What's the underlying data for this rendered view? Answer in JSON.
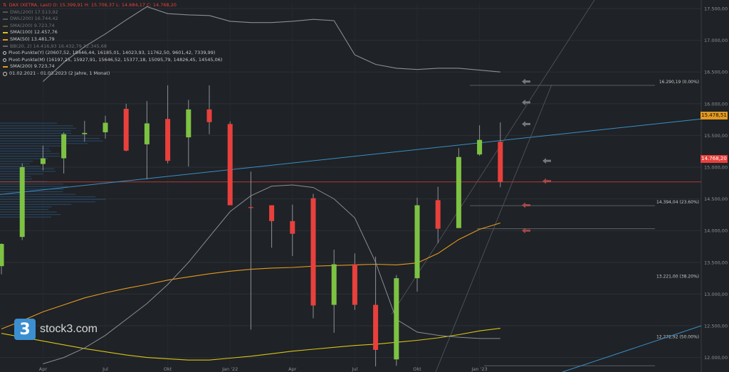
{
  "legend": {
    "symbol_line": "DAX (XETRA, Last)   O: 15.399,91   H: 15.706,37   L: 14.684,17   C: 14.768,20",
    "row2": "DWL(200) 17.513,92",
    "row3": "DWL(200) 16.744,42",
    "row4": "SMA(200) 9.723,74",
    "row5": "SMA(100) 12.457,76",
    "row6": "SMA(50) 13.481,79",
    "row7": "BB(20, 2) 14.416,93  16.432,79  12.345,68",
    "row8": "Pivot-Punkte(Y)  (20607,52,  18446,44,  16185,01,  14023,93,  11762,50,  9601,42,  7339,99)",
    "row9": "Pivot-Punkte(M)  (16197,25,  15927,91,  15646,52,  15377,18,  15095,79,  14826,45,  14545,06)",
    "row10": "SMA(200) 9.723,74",
    "row11": "01.02.2021 - 01.03.2023   (2 Jahre, 1 Monat)"
  },
  "logo": {
    "mark": "3",
    "name": "stock3.com"
  },
  "price_tags": {
    "current": "15.478,51",
    "close": "14.768,20"
  },
  "fib_labels": [
    "16.290,19 (0.00%)",
    "14.394,04 (23.60%)",
    "13.221,00 (38.20%)",
    "12.272,92 (50.00%)"
  ],
  "colors": {
    "background": "#1f2226",
    "up": "#7dc243",
    "down": "#e8403c",
    "sma_orange": "#e39a21",
    "sma_yellow": "#d8c418",
    "bb_grey": "#8a8d91",
    "trend_blue": "#3a8fc7"
  },
  "chart_data": {
    "type": "candlestick",
    "title": "DAX (XETRA, Last)",
    "interval": "monthly",
    "range": "01.02.2021 - 01.03.2023",
    "y_ticks": [
      12000,
      12500,
      13000,
      13500,
      14000,
      14500,
      15000,
      15500,
      16000,
      16500,
      17000,
      17500
    ],
    "y_tick_labels": [
      "12.000,00",
      "12.500,00",
      "13.000,00",
      "13.500,00",
      "14.000,00",
      "14.500,00",
      "15.000,00",
      "15.500,00",
      "16.000,00",
      "16.500,00",
      "17.000,00",
      "17.500,00"
    ],
    "ylim": [
      11850,
      17590
    ],
    "x_tick_labels": [
      {
        "index": 2,
        "label": "Apr"
      },
      {
        "index": 5,
        "label": "Jul"
      },
      {
        "index": 8,
        "label": "Okt"
      },
      {
        "index": 11,
        "label": "Jan '22"
      },
      {
        "index": 14,
        "label": "Apr"
      },
      {
        "index": 17,
        "label": "Jul"
      },
      {
        "index": 20,
        "label": "Okt"
      },
      {
        "index": 23,
        "label": "Jan '23"
      }
    ],
    "candles": [
      {
        "o": 13440,
        "h": 13800,
        "l": 13310,
        "c": 13790
      },
      {
        "o": 13900,
        "h": 15060,
        "l": 13850,
        "c": 15000
      },
      {
        "o": 15050,
        "h": 15340,
        "l": 14950,
        "c": 15140
      },
      {
        "o": 15140,
        "h": 15550,
        "l": 14900,
        "c": 15520
      },
      {
        "o": 15520,
        "h": 15730,
        "l": 15400,
        "c": 15540
      },
      {
        "o": 15550,
        "h": 15810,
        "l": 15450,
        "c": 15700
      },
      {
        "o": 15920,
        "h": 16000,
        "l": 15250,
        "c": 15260
      },
      {
        "o": 15360,
        "h": 16040,
        "l": 14810,
        "c": 15690
      },
      {
        "o": 15760,
        "h": 16290,
        "l": 15060,
        "c": 15100
      },
      {
        "o": 15470,
        "h": 16060,
        "l": 15010,
        "c": 15910
      },
      {
        "o": 15910,
        "h": 16290,
        "l": 15520,
        "c": 15710
      },
      {
        "o": 15680,
        "h": 15720,
        "l": 14430,
        "c": 14400
      },
      {
        "o": 14370,
        "h": 14930,
        "l": 12440,
        "c": 14360
      },
      {
        "o": 14400,
        "h": 14390,
        "l": 13730,
        "c": 14150
      },
      {
        "o": 14150,
        "h": 14410,
        "l": 13600,
        "c": 13950
      },
      {
        "o": 14510,
        "h": 14580,
        "l": 12620,
        "c": 12820
      },
      {
        "o": 12830,
        "h": 13700,
        "l": 12390,
        "c": 13470
      },
      {
        "o": 13470,
        "h": 13640,
        "l": 12750,
        "c": 12830
      },
      {
        "o": 12830,
        "h": 13590,
        "l": 11860,
        "c": 12120
      },
      {
        "o": 11970,
        "h": 13300,
        "l": 11870,
        "c": 13250
      },
      {
        "o": 13250,
        "h": 14520,
        "l": 13040,
        "c": 14400
      },
      {
        "o": 14480,
        "h": 14690,
        "l": 13800,
        "c": 14030
      },
      {
        "o": 14040,
        "h": 15300,
        "l": 14040,
        "c": 15160
      },
      {
        "o": 15200,
        "h": 15660,
        "l": 15180,
        "c": 15430
      },
      {
        "o": 15400,
        "h": 15706,
        "l": 14684,
        "c": 14768
      }
    ],
    "series": [
      {
        "name": "SMA(50)",
        "color": "#e39a21",
        "values": [
          12450,
          12580,
          12720,
          12830,
          12940,
          13020,
          13090,
          13150,
          13220,
          13270,
          13320,
          13360,
          13390,
          13410,
          13420,
          13440,
          13450,
          13460,
          13470,
          13460,
          13490,
          13640,
          13860,
          14020,
          14120
        ]
      },
      {
        "name": "SMA(100)",
        "color": "#d8c418",
        "values": [
          12380,
          12320,
          12260,
          12200,
          12140,
          12090,
          12040,
          12000,
          11980,
          11960,
          11960,
          11990,
          12020,
          12060,
          12100,
          12130,
          12160,
          12190,
          12210,
          12240,
          12270,
          12310,
          12360,
          12420,
          12460
        ]
      },
      {
        "name": "BB(20, 2)",
        "color": "#8a8d91",
        "values": [
          null,
          null,
          16350,
          16650,
          16900,
          17100,
          17320,
          17530,
          17420,
          17400,
          17390,
          17300,
          17280,
          17280,
          17300,
          17330,
          17310,
          16770,
          16620,
          16560,
          16540,
          16560,
          16560,
          16530,
          16500
        ]
      }
    ]
  }
}
